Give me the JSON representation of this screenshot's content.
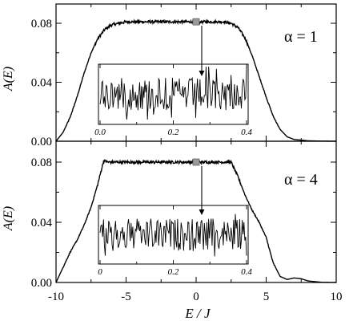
{
  "figure": {
    "xlabel": "E / J",
    "x_ticks": [
      "-10",
      "-5",
      "0",
      "5",
      "10"
    ]
  },
  "chart_data": [
    {
      "type": "line",
      "panel": "top",
      "label": "α = 1",
      "ylabel": "A(E)",
      "xlim": [
        -10,
        10
      ],
      "ylim": [
        0,
        0.09
      ],
      "y_ticks": [
        "0.00",
        "0.04",
        "0.08"
      ],
      "grid": false,
      "series": [
        {
          "x": [
            -10,
            -9.5,
            -9,
            -8.5,
            -8,
            -7.5,
            -7,
            -6.5,
            -6,
            -5.5,
            -5,
            0,
            2,
            2.5,
            3,
            3.5,
            4,
            4.5,
            5,
            5.5,
            6,
            6.5,
            7,
            8,
            9,
            10
          ],
          "values": [
            0.0,
            0.006,
            0.016,
            0.03,
            0.046,
            0.06,
            0.07,
            0.076,
            0.079,
            0.08,
            0.081,
            0.081,
            0.081,
            0.08,
            0.077,
            0.07,
            0.058,
            0.044,
            0.03,
            0.017,
            0.008,
            0.003,
            0.0012,
            0.0003,
            0.0001,
            0.0
          ]
        }
      ],
      "inset": {
        "x_ticks": [
          "0.0",
          "0.2",
          "0.4"
        ],
        "xlim": [
          0,
          0.4
        ],
        "description_arrow": "magnified region near E = 0"
      }
    },
    {
      "type": "line",
      "panel": "bottom",
      "label": "α = 4",
      "ylabel": "A(E)",
      "xlim": [
        -10,
        10
      ],
      "ylim": [
        0,
        0.09
      ],
      "y_ticks": [
        "0.00",
        "0.04",
        "0.08"
      ],
      "grid": false,
      "series": [
        {
          "x": [
            -10,
            -9.6,
            -9,
            -8.5,
            -8,
            -7.5,
            -7,
            -6.6,
            -6.3,
            -6,
            -5,
            0,
            2.5,
            3,
            3.5,
            4,
            4.5,
            5,
            5.5,
            6,
            6.5,
            7,
            7.5,
            8,
            9,
            10
          ],
          "values": [
            0.0,
            0.008,
            0.02,
            0.028,
            0.038,
            0.05,
            0.066,
            0.081,
            0.08,
            0.08,
            0.08,
            0.08,
            0.08,
            0.07,
            0.058,
            0.048,
            0.04,
            0.03,
            0.013,
            0.004,
            0.002,
            0.003,
            0.0025,
            0.001,
            0.0001,
            0.0
          ]
        }
      ],
      "inset": {
        "x_ticks": [
          "0",
          "0.2",
          "0.4"
        ],
        "xlim": [
          0,
          0.4
        ],
        "description_arrow": "magnified region near E = 0"
      }
    }
  ]
}
